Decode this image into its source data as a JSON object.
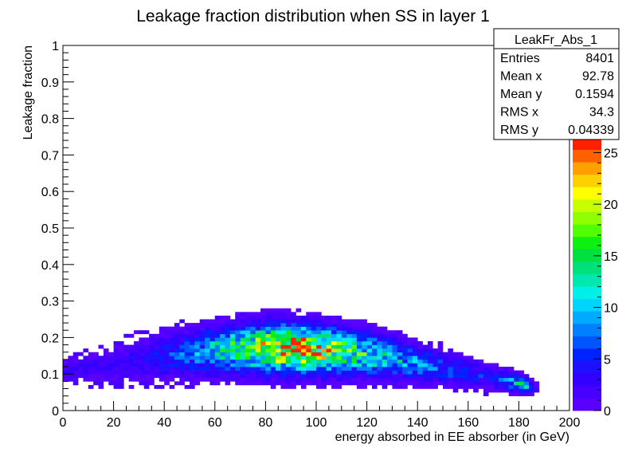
{
  "chart_data": {
    "type": "heatmap",
    "title": "Leakage fraction distribution when SS in layer 1",
    "xlabel": "energy absorbed in EE absorber (in GeV)",
    "ylabel": "Leakage fraction",
    "xlim": [
      0,
      200
    ],
    "ylim": [
      0,
      1
    ],
    "x_ticks": [
      "0",
      "20",
      "40",
      "60",
      "80",
      "100",
      "120",
      "140",
      "160",
      "180",
      "200"
    ],
    "y_ticks": [
      "0",
      "0.1",
      "0.2",
      "0.3",
      "0.4",
      "0.5",
      "0.6",
      "0.7",
      "0.8",
      "0.9",
      "1"
    ],
    "z_ticks": [
      "0",
      "5",
      "10",
      "15",
      "20",
      "25"
    ],
    "zlim": [
      0,
      26.5
    ],
    "bins": {
      "nx": 100,
      "ny": 100
    },
    "ridge": {
      "center_y": [
        [
          0,
          0.11
        ],
        [
          20,
          0.125
        ],
        [
          40,
          0.15
        ],
        [
          60,
          0.165
        ],
        [
          80,
          0.172
        ],
        [
          100,
          0.168
        ],
        [
          120,
          0.155
        ],
        [
          140,
          0.13
        ],
        [
          160,
          0.105
        ],
        [
          180,
          0.075
        ],
        [
          186,
          0.065
        ]
      ],
      "spread_y": [
        [
          0,
          0.018
        ],
        [
          40,
          0.035
        ],
        [
          80,
          0.04
        ],
        [
          120,
          0.035
        ],
        [
          160,
          0.022
        ],
        [
          186,
          0.012
        ]
      ],
      "peak_density": [
        [
          0,
          2
        ],
        [
          30,
          3
        ],
        [
          50,
          7
        ],
        [
          70,
          14
        ],
        [
          85,
          22
        ],
        [
          95,
          24
        ],
        [
          110,
          16
        ],
        [
          130,
          10
        ],
        [
          150,
          6
        ],
        [
          170,
          4
        ],
        [
          182,
          12
        ],
        [
          186,
          2
        ]
      ]
    },
    "stats": {
      "name": "LeakFr_Abs_1",
      "rows": [
        {
          "label": "Entries",
          "value": "8401"
        },
        {
          "label": "Mean x",
          "value": "92.78"
        },
        {
          "label": "Mean y",
          "value": "0.1594"
        },
        {
          "label": "RMS x",
          "value": "34.3"
        },
        {
          "label": "RMS y",
          "value": "0.04339"
        }
      ]
    },
    "palette": [
      "#5a00ff",
      "#4700ff",
      "#3300ff",
      "#1e10ff",
      "#0022ff",
      "#0055ff",
      "#0080ff",
      "#00aaff",
      "#00d4ff",
      "#00f0e8",
      "#00e8b0",
      "#00e078",
      "#00e040",
      "#10f010",
      "#50ff00",
      "#90ff00",
      "#c8ff00",
      "#ffff00",
      "#ffd000",
      "#ffa000",
      "#ff6000",
      "#ff2000"
    ],
    "grid": false,
    "legend": "none"
  }
}
